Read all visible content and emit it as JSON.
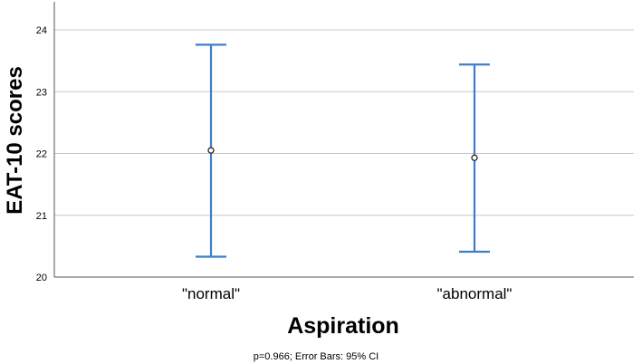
{
  "chart_data": {
    "type": "scatter",
    "subtype": "error-bar",
    "xlabel": "Aspiration",
    "ylabel": "EAT-10 scores",
    "footnote": "p=0.966; Error Bars: 95% CI",
    "categories": [
      "\"normal\"",
      "\"abnormal\""
    ],
    "means": [
      22.05,
      21.93
    ],
    "ci_lower": [
      20.33,
      20.41
    ],
    "ci_upper": [
      23.76,
      23.44
    ],
    "ylim": [
      20,
      24.4
    ],
    "yticks": [
      "20",
      "21",
      "22",
      "23",
      "24"
    ],
    "grid": "horizontal",
    "colors": {
      "error_bar": "#3e7ec9",
      "gridline": "#c8c8c8",
      "axis": "#555555"
    }
  }
}
